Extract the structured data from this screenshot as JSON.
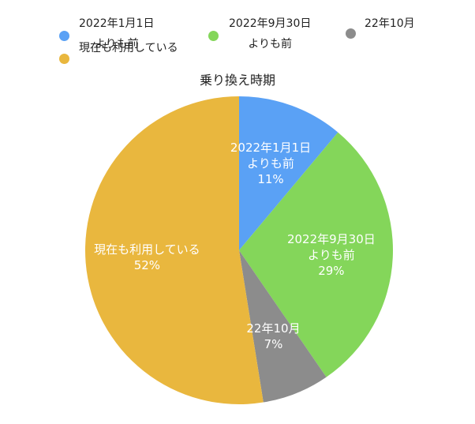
{
  "chart_data": {
    "type": "pie",
    "title": "乗り換え時期",
    "categories": [
      "2022年1月1日\nよりも前",
      "2022年9月30日\nよりも前",
      "22年10月",
      "現在も利用している"
    ],
    "values": [
      11,
      29,
      7,
      52
    ],
    "value_labels": [
      "11%",
      "29%",
      "7%",
      "52%"
    ],
    "colors": [
      "#5aa1f5",
      "#84d65a",
      "#8c8c8c",
      "#e9b73e"
    ],
    "legend": "top"
  }
}
